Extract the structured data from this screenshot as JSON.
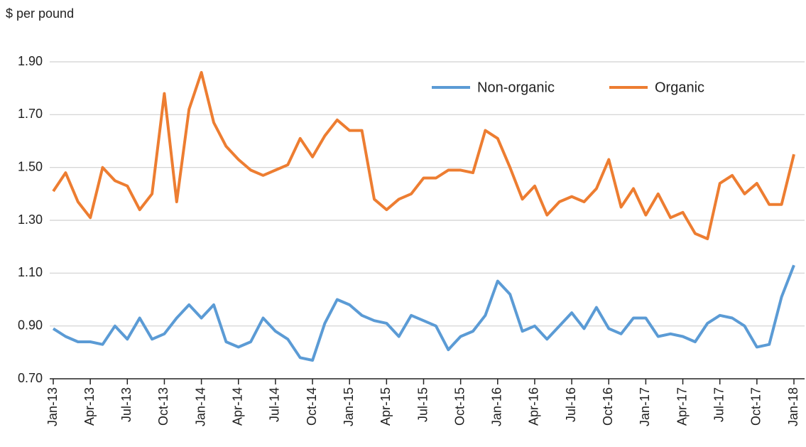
{
  "chart_data": {
    "type": "line",
    "y_axis_label": "$ per pound",
    "categories": [
      "Jan-13",
      null,
      null,
      "Apr-13",
      null,
      null,
      "Jul-13",
      null,
      null,
      "Oct-13",
      null,
      null,
      "Jan-14",
      null,
      null,
      "Apr-14",
      null,
      null,
      "Jul-14",
      null,
      null,
      "Oct-14",
      null,
      null,
      "Jan-15",
      null,
      null,
      "Apr-15",
      null,
      null,
      "Jul-15",
      null,
      null,
      "Oct-15",
      null,
      null,
      "Jan-16",
      null,
      null,
      "Apr-16",
      null,
      null,
      "Jul-16",
      null,
      null,
      "Oct-16",
      null,
      null,
      "Jan-17",
      null,
      null,
      "Apr-17",
      null,
      null,
      "Jul-17",
      null,
      null,
      "Oct-17",
      null,
      null,
      "Jan-18"
    ],
    "series": [
      {
        "name": "Non-organic",
        "color": "#5b9bd5",
        "values": [
          0.89,
          0.86,
          0.84,
          0.84,
          0.83,
          0.9,
          0.85,
          0.93,
          0.85,
          0.87,
          0.93,
          0.98,
          0.93,
          0.98,
          0.84,
          0.82,
          0.84,
          0.93,
          0.88,
          0.85,
          0.78,
          0.77,
          0.91,
          1.0,
          0.98,
          0.94,
          0.92,
          0.91,
          0.86,
          0.94,
          0.92,
          0.9,
          0.81,
          0.86,
          0.88,
          0.94,
          1.07,
          1.02,
          0.88,
          0.9,
          0.85,
          0.9,
          0.95,
          0.89,
          0.97,
          0.89,
          0.87,
          0.93,
          0.93,
          0.86,
          0.87,
          0.86,
          0.84,
          0.91,
          0.94,
          0.93,
          0.9,
          0.82,
          0.83,
          1.01,
          1.13
        ]
      },
      {
        "name": "Organic",
        "color": "#ed7d31",
        "values": [
          1.41,
          1.48,
          1.37,
          1.31,
          1.5,
          1.45,
          1.43,
          1.34,
          1.4,
          1.78,
          1.37,
          1.72,
          1.86,
          1.67,
          1.58,
          1.53,
          1.49,
          1.47,
          1.49,
          1.51,
          1.61,
          1.54,
          1.62,
          1.68,
          1.64,
          1.64,
          1.38,
          1.34,
          1.38,
          1.4,
          1.46,
          1.46,
          1.49,
          1.49,
          1.48,
          1.64,
          1.61,
          1.5,
          1.38,
          1.43,
          1.32,
          1.37,
          1.39,
          1.37,
          1.42,
          1.53,
          1.35,
          1.42,
          1.32,
          1.4,
          1.31,
          1.33,
          1.25,
          1.23,
          1.44,
          1.47,
          1.4,
          1.44,
          1.36,
          1.36,
          1.55
        ]
      }
    ],
    "ylim": [
      0.7,
      1.9
    ],
    "yticks": [
      {
        "value": 0.7,
        "label": "0.70"
      },
      {
        "value": 0.9,
        "label": "0.90"
      },
      {
        "value": 1.1,
        "label": "1.10"
      },
      {
        "value": 1.3,
        "label": "1.30"
      },
      {
        "value": 1.5,
        "label": "1.50"
      },
      {
        "value": 1.7,
        "label": "1.70"
      },
      {
        "value": 1.9,
        "label": "1.90"
      }
    ],
    "grid": true,
    "legend": "top"
  }
}
